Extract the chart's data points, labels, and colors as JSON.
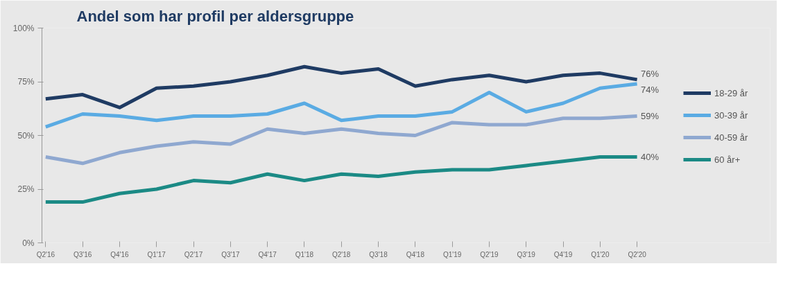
{
  "chart_data": {
    "type": "line",
    "title": "Andel som har profil per aldersgruppe",
    "categories": [
      "Q2'16",
      "Q3'16",
      "Q4'16",
      "Q1'17",
      "Q2'17",
      "Q3'17",
      "Q4'17",
      "Q1'18",
      "Q2'18",
      "Q3'18",
      "Q4'18",
      "Q1'19",
      "Q2'19",
      "Q3'19",
      "Q4'19",
      "Q1'20",
      "Q2'20"
    ],
    "series": [
      {
        "name": "18-29 år",
        "color": "#1f3b63",
        "values": [
          67,
          69,
          63,
          72,
          73,
          75,
          78,
          82,
          79,
          81,
          73,
          76,
          78,
          75,
          78,
          79,
          76
        ],
        "value_labels": [
          null,
          null,
          null,
          null,
          null,
          null,
          null,
          null,
          null,
          null,
          null,
          null,
          null,
          null,
          null,
          null,
          "76%"
        ]
      },
      {
        "name": "30-39 år",
        "color": "#5aabe3",
        "values": [
          54,
          60,
          59,
          57,
          59,
          59,
          60,
          65,
          57,
          59,
          59,
          61,
          70,
          61,
          65,
          72,
          74
        ],
        "value_labels": [
          null,
          null,
          null,
          null,
          null,
          null,
          null,
          null,
          null,
          null,
          null,
          null,
          null,
          null,
          null,
          null,
          "74%"
        ]
      },
      {
        "name": "40-59 år",
        "color": "#8fa8d0",
        "values": [
          40,
          37,
          42,
          45,
          47,
          46,
          53,
          51,
          53,
          51,
          50,
          56,
          55,
          55,
          58,
          58,
          59
        ],
        "value_labels": [
          null,
          null,
          null,
          null,
          null,
          null,
          null,
          null,
          null,
          null,
          null,
          null,
          null,
          null,
          null,
          null,
          "59%"
        ]
      },
      {
        "name": "60 år+",
        "color": "#1b8a85",
        "values": [
          19,
          19,
          23,
          25,
          29,
          28,
          32,
          29,
          32,
          31,
          33,
          34,
          34,
          36,
          38,
          40,
          40
        ],
        "value_labels": [
          null,
          null,
          null,
          null,
          null,
          null,
          null,
          null,
          null,
          null,
          null,
          null,
          null,
          null,
          null,
          null,
          "40%"
        ]
      }
    ],
    "ylim": [
      0,
      100
    ],
    "yticks": [
      {
        "value": 0,
        "label": "0%"
      },
      {
        "value": 25,
        "label": "25%"
      },
      {
        "value": 50,
        "label": "50%"
      },
      {
        "value": 75,
        "label": "75%"
      },
      {
        "value": 100,
        "label": "100%"
      }
    ],
    "legend": "right",
    "marker": "none",
    "line_style": "solid"
  }
}
